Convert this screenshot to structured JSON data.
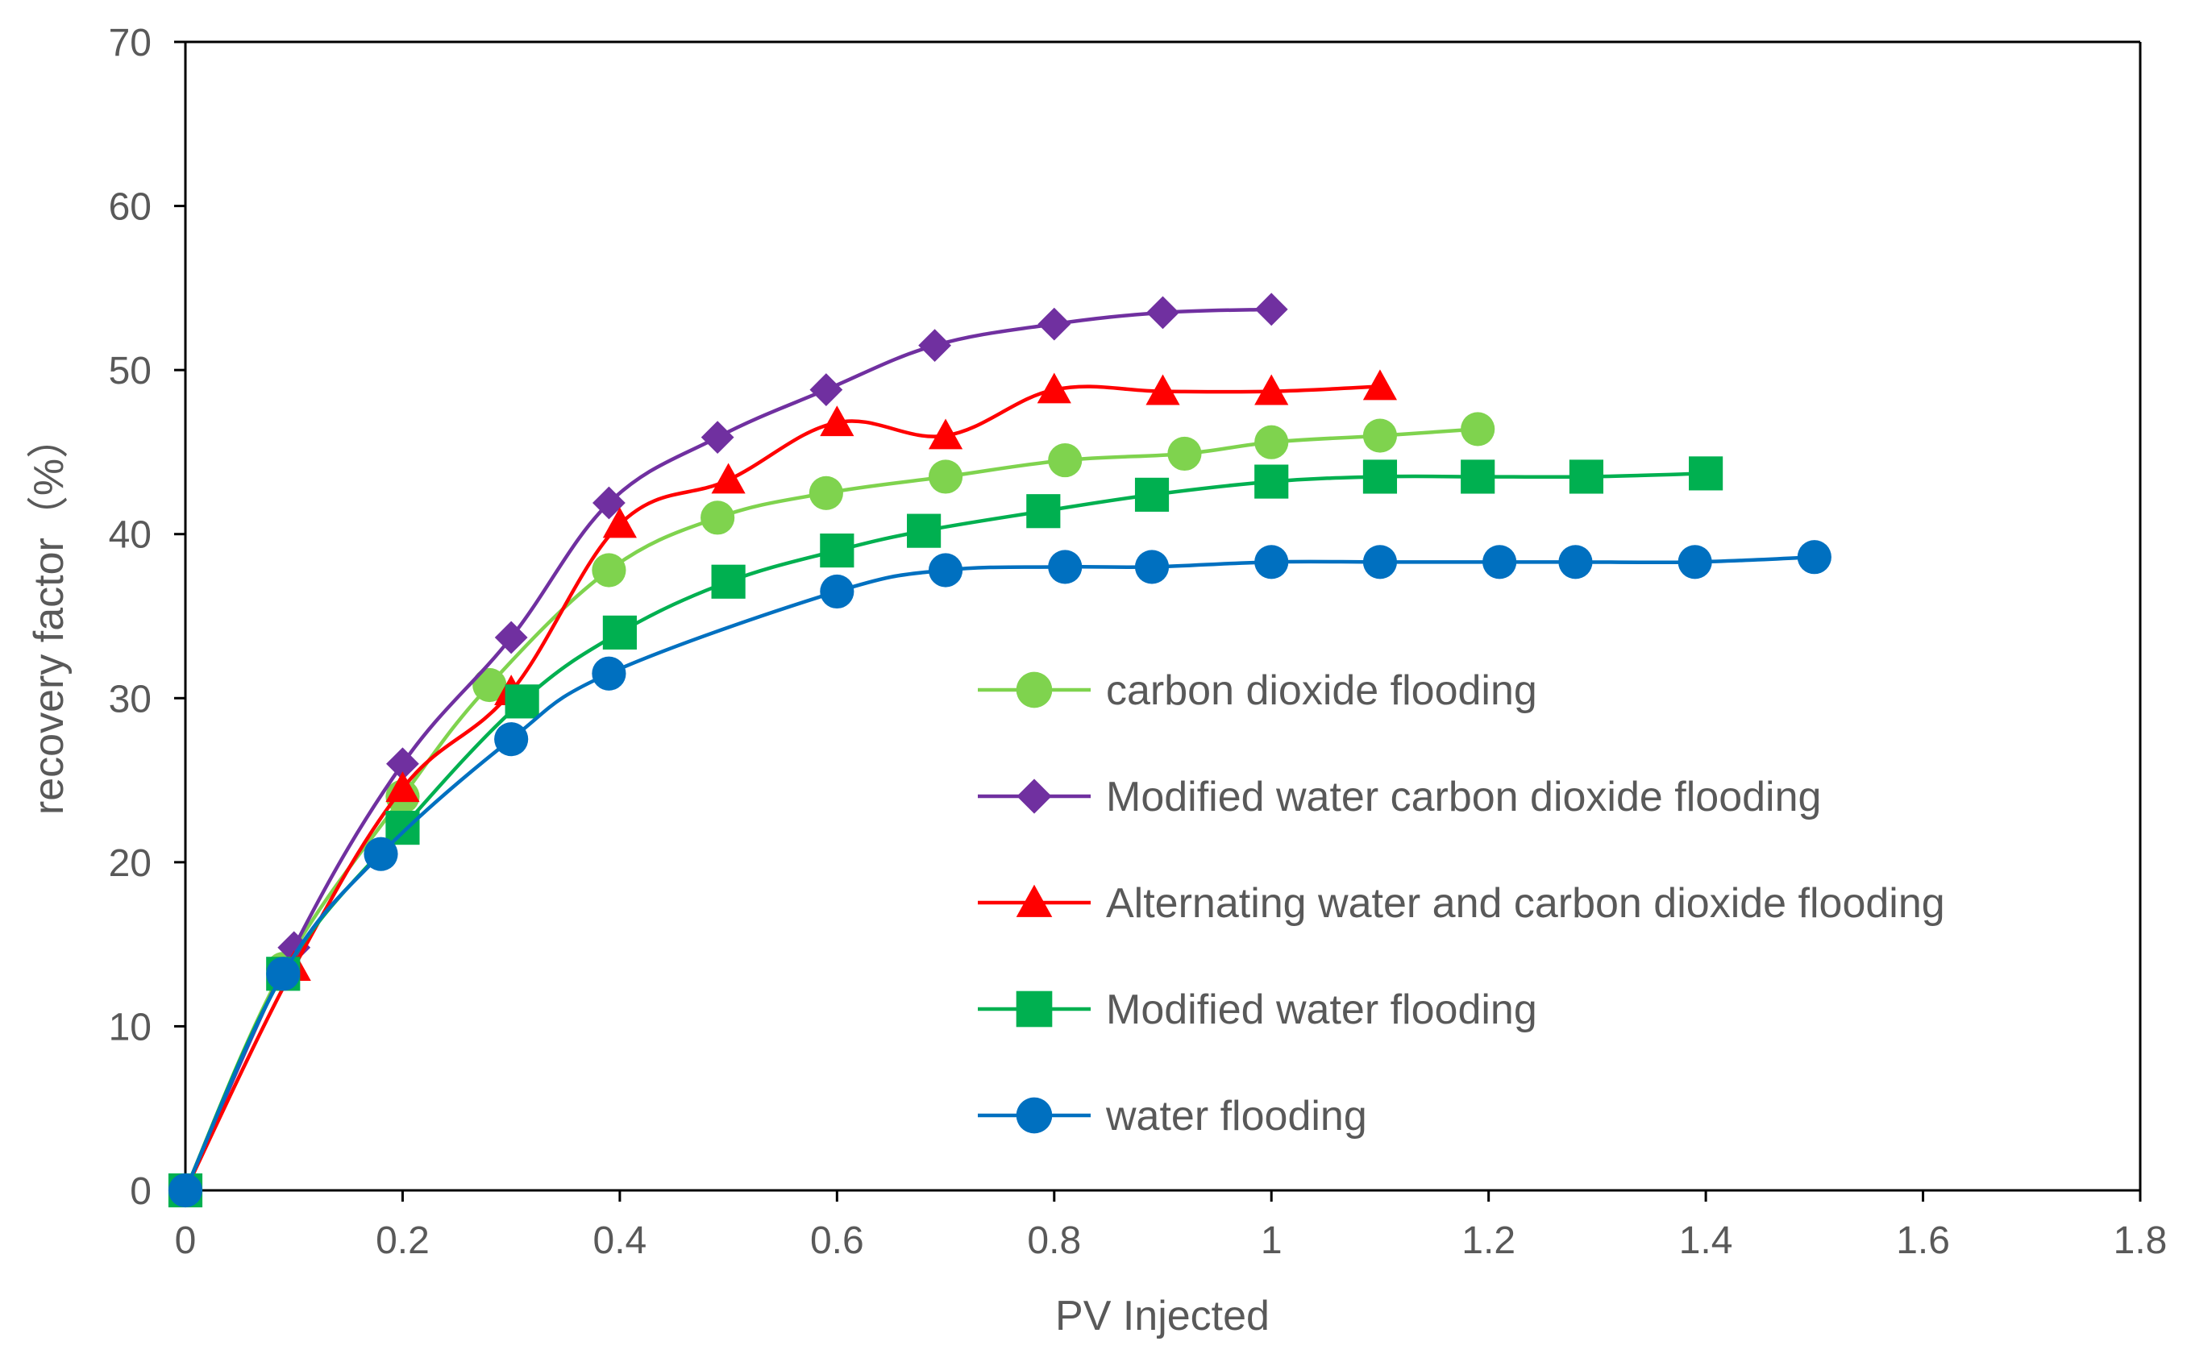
{
  "chart_data": {
    "type": "line",
    "title": "",
    "xlabel": "PV Injected",
    "ylabel": "recovery factor（%）",
    "xlim": [
      0,
      1.8
    ],
    "ylim": [
      0,
      70
    ],
    "xticks": [
      0,
      0.2,
      0.4,
      0.6,
      0.8,
      1,
      1.2,
      1.4,
      1.6,
      1.8
    ],
    "xtick_labels": [
      "0",
      "0.2",
      "0.4",
      "0.6",
      "0.8",
      "1",
      "1.2",
      "1.4",
      "1.6",
      "1.8"
    ],
    "yticks": [
      0,
      10,
      20,
      30,
      40,
      50,
      60,
      70
    ],
    "ytick_labels": [
      "0",
      "10",
      "20",
      "30",
      "40",
      "50",
      "60",
      "70"
    ],
    "grid": false,
    "legend_position": "center-right",
    "series": [
      {
        "name": "carbon dioxide flooding",
        "color": "#7FD34E",
        "marker": "circle",
        "x": [
          0,
          0.09,
          0.2,
          0.28,
          0.39,
          0.49,
          0.59,
          0.7,
          0.81,
          0.92,
          1.0,
          1.1,
          1.19
        ],
        "y": [
          0,
          13.5,
          24,
          30.8,
          37.8,
          41,
          42.5,
          43.5,
          44.5,
          44.9,
          45.6,
          46,
          46.4
        ]
      },
      {
        "name": "Modified water carbon dioxide flooding",
        "color": "#7030A0",
        "marker": "diamond",
        "x": [
          0,
          0.1,
          0.2,
          0.3,
          0.39,
          0.49,
          0.59,
          0.69,
          0.8,
          0.9,
          1.0
        ],
        "y": [
          0,
          14.8,
          26,
          33.7,
          41.9,
          45.9,
          48.8,
          51.5,
          52.8,
          53.5,
          53.7
        ]
      },
      {
        "name": "Alternating water and carbon dioxide flooding",
        "color": "#FF0000",
        "marker": "triangle",
        "x": [
          0,
          0.1,
          0.2,
          0.3,
          0.4,
          0.5,
          0.6,
          0.7,
          0.8,
          0.9,
          1.0,
          1.1
        ],
        "y": [
          0,
          13.6,
          24.5,
          30.4,
          40.6,
          43.3,
          46.8,
          46,
          48.8,
          48.7,
          48.7,
          49
        ]
      },
      {
        "name": "Modified water flooding",
        "color": "#00B050",
        "marker": "square",
        "x": [
          0,
          0.09,
          0.2,
          0.31,
          0.4,
          0.5,
          0.6,
          0.68,
          0.79,
          0.89,
          1.0,
          1.1,
          1.19,
          1.29,
          1.4
        ],
        "y": [
          0,
          13.2,
          22.1,
          29.8,
          34,
          37.1,
          39,
          40.2,
          41.4,
          42.4,
          43.2,
          43.5,
          43.5,
          43.5,
          43.7
        ]
      },
      {
        "name": "water flooding",
        "color": "#0070C0",
        "marker": "circle",
        "x": [
          0,
          0.09,
          0.18,
          0.3,
          0.39,
          0.6,
          0.7,
          0.81,
          0.89,
          1.0,
          1.1,
          1.21,
          1.28,
          1.39,
          1.5
        ],
        "y": [
          0,
          13.2,
          20.5,
          27.5,
          31.5,
          36.5,
          37.8,
          38,
          38,
          38.3,
          38.3,
          38.3,
          38.3,
          38.3,
          38.6
        ]
      }
    ]
  }
}
